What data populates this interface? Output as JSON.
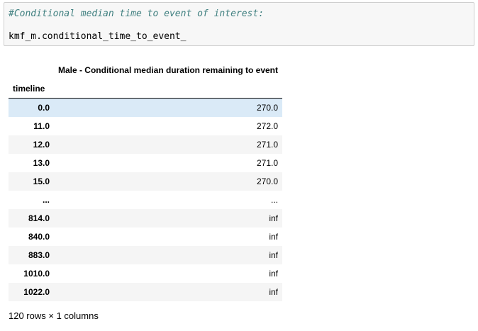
{
  "code_cell": {
    "comment": "#Conditional median time to event of interest:",
    "code": "kmf_m.conditional_time_to_event_"
  },
  "output_table": {
    "column_header": "Male - Conditional median duration remaining to event",
    "index_name": "timeline",
    "rows": [
      {
        "index": "0.0",
        "value": "270.0"
      },
      {
        "index": "11.0",
        "value": "272.0"
      },
      {
        "index": "12.0",
        "value": "271.0"
      },
      {
        "index": "13.0",
        "value": "271.0"
      },
      {
        "index": "15.0",
        "value": "270.0"
      },
      {
        "index": "...",
        "value": "..."
      },
      {
        "index": "814.0",
        "value": "inf"
      },
      {
        "index": "840.0",
        "value": "inf"
      },
      {
        "index": "883.0",
        "value": "inf"
      },
      {
        "index": "1010.0",
        "value": "inf"
      },
      {
        "index": "1022.0",
        "value": "inf"
      }
    ]
  },
  "shape_text": "120 rows × 1 columns"
}
